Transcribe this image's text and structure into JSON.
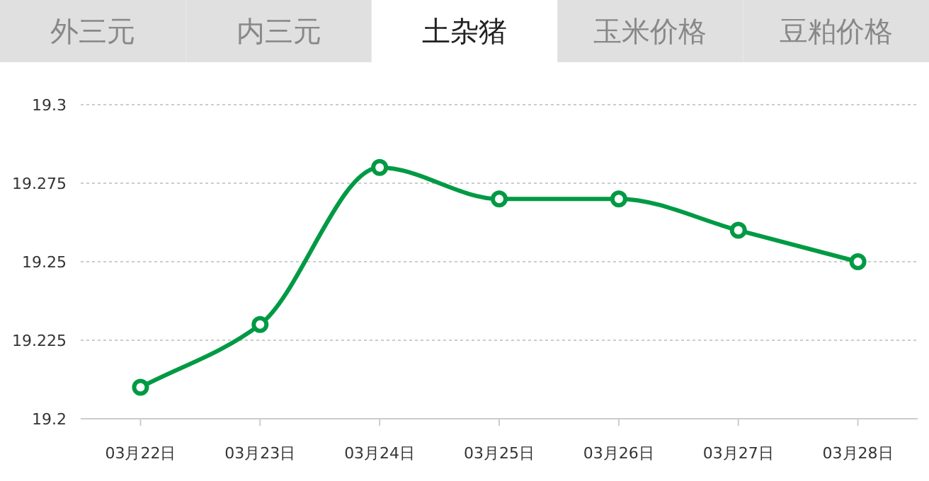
{
  "chart_data": {
    "type": "line",
    "title": "土杂猪",
    "annotations": [
      "外三元",
      "内三元",
      "玉米价格",
      "豆粕价格"
    ],
    "categories": [
      "03月22日",
      "03月23日",
      "03月24日",
      "03月25日",
      "03月26日",
      "03月27日",
      "03月28日"
    ],
    "series": [
      {
        "color": "#009a44",
        "values": [
          19.21,
          19.23,
          19.28,
          19.27,
          19.27,
          19.26,
          19.25
        ]
      }
    ],
    "ylim": [
      19.2,
      19.3
    ],
    "yticks": [
      19.2,
      19.225,
      19.25,
      19.275,
      19.3
    ],
    "grid": "y",
    "marker": "circle",
    "line_style": "solid"
  }
}
